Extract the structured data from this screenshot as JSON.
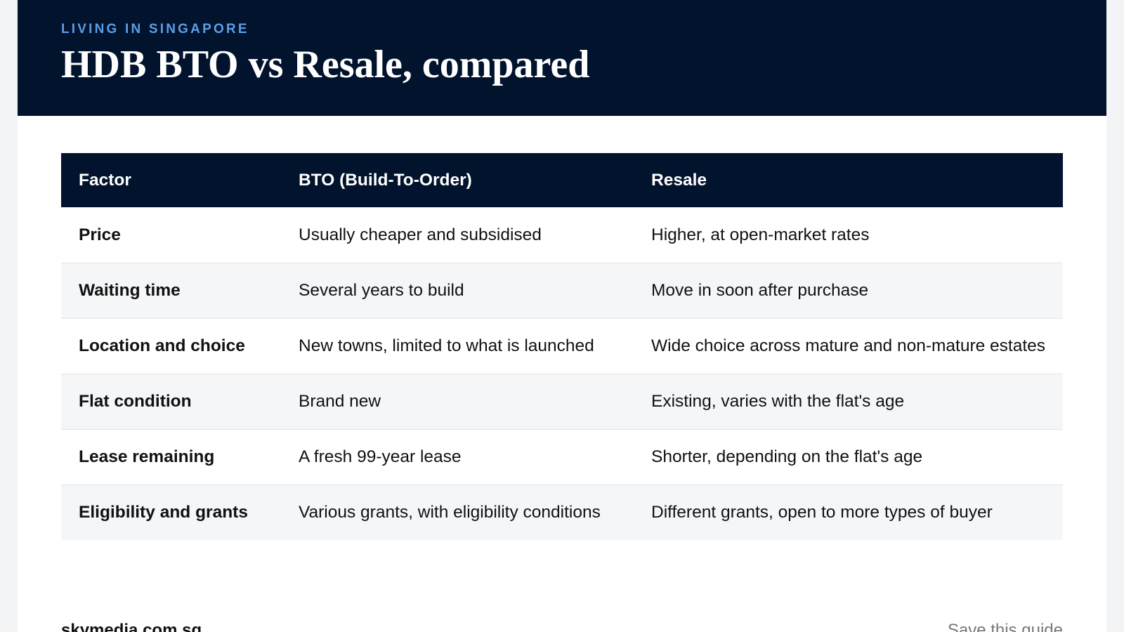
{
  "header": {
    "eyebrow": "LIVING IN SINGAPORE",
    "title": "HDB BTO vs Resale, compared"
  },
  "table": {
    "columns": [
      "Factor",
      "BTO (Build-To-Order)",
      "Resale"
    ],
    "rows": [
      [
        "Price",
        "Usually cheaper and subsidised",
        "Higher, at open-market rates"
      ],
      [
        "Waiting time",
        "Several years to build",
        "Move in soon after purchase"
      ],
      [
        "Location and choice",
        "New towns, limited to what is launched",
        "Wide choice across mature and non-mature estates"
      ],
      [
        "Flat condition",
        "Brand new",
        "Existing, varies with the flat's age"
      ],
      [
        "Lease remaining",
        "A fresh 99-year lease",
        "Shorter, depending on the flat's age"
      ],
      [
        "Eligibility and grants",
        "Various grants, with eligibility conditions",
        "Different grants, open to more types of buyer"
      ]
    ]
  },
  "footer": {
    "site": "skymedia.com.sg",
    "action": "Save this guide"
  }
}
